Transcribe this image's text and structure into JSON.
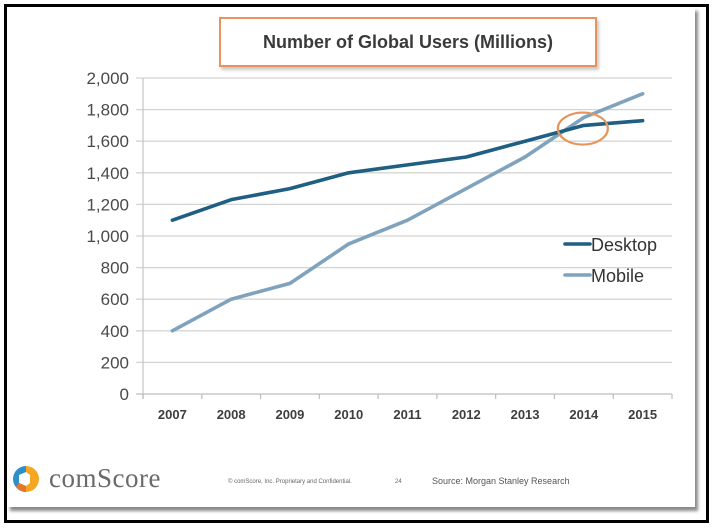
{
  "chart_data": {
    "type": "line",
    "title": "Number of Global Users (Millions)",
    "xlabel": "",
    "ylabel": "",
    "categories": [
      "2007",
      "2008",
      "2009",
      "2010",
      "2011",
      "2012",
      "2013",
      "2014",
      "2015"
    ],
    "series": [
      {
        "name": "Desktop",
        "color": "#1f5f84",
        "values": [
          1100,
          1230,
          1300,
          1400,
          1450,
          1500,
          1600,
          1700,
          1730
        ]
      },
      {
        "name": "Mobile",
        "color": "#7fa2bd",
        "values": [
          400,
          600,
          700,
          950,
          1100,
          1300,
          1500,
          1750,
          1900
        ]
      }
    ],
    "ylim": [
      0,
      2000
    ],
    "yticks": [
      0,
      200,
      400,
      600,
      800,
      1000,
      1200,
      1400,
      1600,
      1800,
      2000
    ],
    "ytick_labels": [
      "0",
      "200",
      "400",
      "600",
      "800",
      "1,000",
      "1,200",
      "1,400",
      "1,600",
      "1,800",
      "2,000"
    ],
    "grid": true,
    "legend_position": "right",
    "annotation": {
      "type": "ellipse-highlight",
      "label": "crossover",
      "x_category": "2014",
      "near_value": 1680,
      "color": "#e8935a"
    }
  },
  "footer": {
    "logo_text": "comScore",
    "copyright": "© comScore, Inc.  Proprietary and Confidential.",
    "page_number": "24",
    "source": "Source: Morgan Stanley Research"
  }
}
